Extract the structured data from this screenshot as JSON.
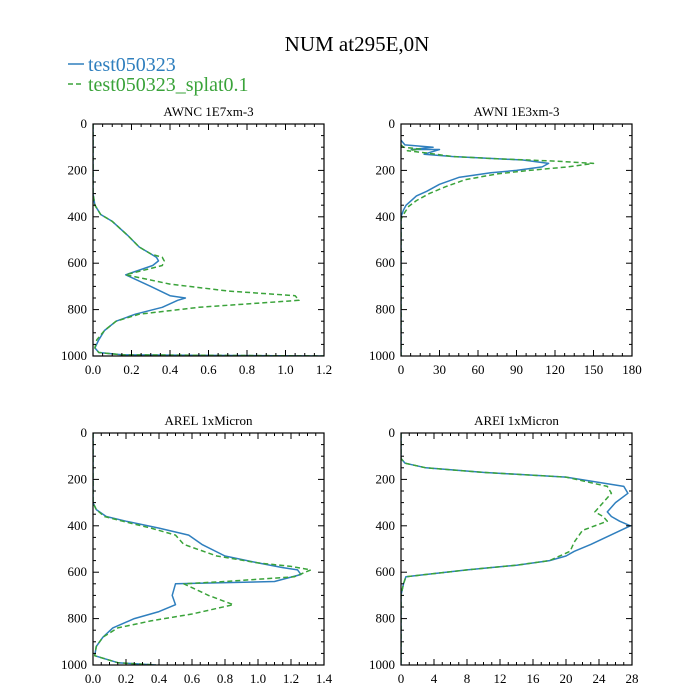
{
  "title": "NUM at295E,0N",
  "legend": [
    {
      "name": "test050323",
      "color": "#2f7fbe",
      "dash": "solid"
    },
    {
      "name": "test050323_splat0.1",
      "color": "#3aa33a",
      "dash": "dashed"
    }
  ],
  "chart_data": [
    {
      "type": "line",
      "title": "AWNC  1E7xm-3",
      "xlim": [
        0,
        1.2
      ],
      "xticks": [
        "0.0",
        "0.2",
        "0.4",
        "0.6",
        "0.8",
        "1.0",
        "1.2"
      ],
      "ylim": [
        1000,
        0
      ],
      "yticks": [
        "0",
        "200",
        "400",
        "600",
        "800",
        "1000"
      ],
      "series": [
        {
          "name": "test050323",
          "x": [
            0,
            0,
            0.01,
            0.04,
            0.1,
            0.18,
            0.24,
            0.3,
            0.33,
            0.34,
            0.31,
            0.17,
            0.3,
            0.4,
            0.48,
            0.44,
            0.36,
            0.22,
            0.12,
            0.06,
            0.03,
            0.01,
            0.03,
            0.15,
            1.2
          ],
          "y": [
            0,
            300,
            350,
            390,
            420,
            480,
            530,
            560,
            575,
            590,
            610,
            650,
            700,
            740,
            750,
            760,
            790,
            820,
            850,
            890,
            930,
            965,
            985,
            995,
            1000
          ]
        },
        {
          "name": "test050323_splat0.1",
          "x": [
            0,
            0,
            0.01,
            0.04,
            0.1,
            0.18,
            0.24,
            0.3,
            0.36,
            0.37,
            0.36,
            0.17,
            0.4,
            0.7,
            1.05,
            1.07,
            0.55,
            0.24,
            0.12,
            0.06,
            0.02,
            0.01,
            0.03,
            0.15,
            1.2
          ],
          "y": [
            0,
            300,
            350,
            390,
            420,
            480,
            530,
            560,
            575,
            590,
            610,
            650,
            690,
            720,
            740,
            760,
            790,
            820,
            850,
            890,
            930,
            965,
            985,
            995,
            1000
          ]
        }
      ]
    },
    {
      "type": "line",
      "title": "AWNI  1E3xm-3",
      "xlim": [
        0,
        180
      ],
      "xticks": [
        "0",
        "30",
        "60",
        "90",
        "120",
        "150",
        "180"
      ],
      "ylim": [
        1000,
        0
      ],
      "yticks": [
        "0",
        "200",
        "400",
        "600",
        "800",
        "1000"
      ],
      "series": [
        {
          "name": "test050323",
          "x": [
            0,
            3,
            25,
            8,
            30,
            18,
            40,
            75,
            95,
            115,
            110,
            90,
            70,
            45,
            30,
            20,
            12,
            8,
            4,
            2,
            0,
            0,
            0
          ],
          "y": [
            70,
            90,
            100,
            110,
            110,
            130,
            140,
            150,
            155,
            170,
            185,
            200,
            210,
            230,
            260,
            290,
            310,
            330,
            350,
            370,
            400,
            450,
            1000
          ]
        },
        {
          "name": "test050323_splat0.1",
          "x": [
            0,
            2,
            15,
            5,
            20,
            40,
            75,
            120,
            150,
            130,
            100,
            75,
            50,
            35,
            22,
            12,
            6,
            3,
            0,
            0,
            0
          ],
          "y": [
            90,
            100,
            108,
            115,
            125,
            140,
            150,
            160,
            170,
            185,
            200,
            215,
            240,
            270,
            300,
            330,
            355,
            380,
            410,
            450,
            1000
          ]
        }
      ]
    },
    {
      "type": "line",
      "title": "AREL  1xMicron",
      "xlim": [
        0,
        1.4
      ],
      "xticks": [
        "0.0",
        "0.2",
        "0.4",
        "0.6",
        "0.8",
        "1.0",
        "1.2",
        "1.4"
      ],
      "ylim": [
        1000,
        0
      ],
      "yticks": [
        "0",
        "200",
        "400",
        "600",
        "800",
        "1000"
      ],
      "series": [
        {
          "name": "test050323",
          "x": [
            0,
            0,
            0.02,
            0.08,
            0.2,
            0.4,
            0.58,
            0.66,
            0.8,
            1.0,
            1.15,
            1.24,
            1.26,
            1.1,
            0.5,
            0.48,
            0.5,
            0.4,
            0.25,
            0.12,
            0.06,
            0.02,
            0.01,
            0.15,
            0.38
          ],
          "y": [
            0,
            300,
            330,
            360,
            380,
            410,
            440,
            480,
            530,
            560,
            580,
            590,
            610,
            640,
            650,
            700,
            740,
            770,
            800,
            840,
            880,
            920,
            960,
            990,
            1000
          ]
        },
        {
          "name": "test050323_splat0.1",
          "x": [
            0,
            0,
            0.02,
            0.07,
            0.18,
            0.35,
            0.5,
            0.55,
            0.75,
            1.0,
            1.2,
            1.32,
            1.22,
            0.8,
            0.55,
            0.7,
            0.85,
            0.6,
            0.35,
            0.15,
            0.06,
            0.02,
            0.01,
            0.15,
            0.38
          ],
          "y": [
            0,
            300,
            330,
            360,
            380,
            410,
            440,
            480,
            530,
            560,
            575,
            590,
            620,
            640,
            650,
            700,
            740,
            780,
            810,
            840,
            880,
            920,
            960,
            990,
            1000
          ]
        }
      ]
    },
    {
      "type": "line",
      "title": "AREI  1xMicron",
      "xlim": [
        0,
        28
      ],
      "xticks": [
        "0",
        "4",
        "8",
        "12",
        "16",
        "20",
        "24",
        "28"
      ],
      "ylim": [
        1000,
        0
      ],
      "yticks": [
        "0",
        "200",
        "400",
        "600",
        "800",
        "1000"
      ],
      "series": [
        {
          "name": "test050323",
          "x": [
            0,
            0,
            0.5,
            3,
            10,
            20,
            27,
            27.5,
            26,
            25,
            25.5,
            26.5,
            27.8,
            26,
            23,
            21,
            20,
            18,
            14,
            8,
            3,
            0.6,
            0.3,
            0,
            0
          ],
          "y": [
            0,
            110,
            130,
            150,
            170,
            190,
            230,
            260,
            300,
            340,
            360,
            380,
            400,
            430,
            480,
            510,
            530,
            550,
            570,
            590,
            610,
            620,
            650,
            700,
            1000
          ]
        },
        {
          "name": "test050323_splat0.1",
          "x": [
            0,
            0,
            0.5,
            3,
            10,
            20,
            25,
            25.5,
            24.5,
            23.5,
            24.5,
            25,
            22,
            21,
            20.5,
            18,
            14,
            8,
            3,
            0.6,
            0.3,
            0,
            0
          ],
          "y": [
            0,
            110,
            130,
            150,
            170,
            190,
            230,
            260,
            300,
            340,
            360,
            380,
            420,
            470,
            510,
            550,
            570,
            590,
            610,
            620,
            650,
            700,
            1000
          ]
        }
      ]
    }
  ]
}
